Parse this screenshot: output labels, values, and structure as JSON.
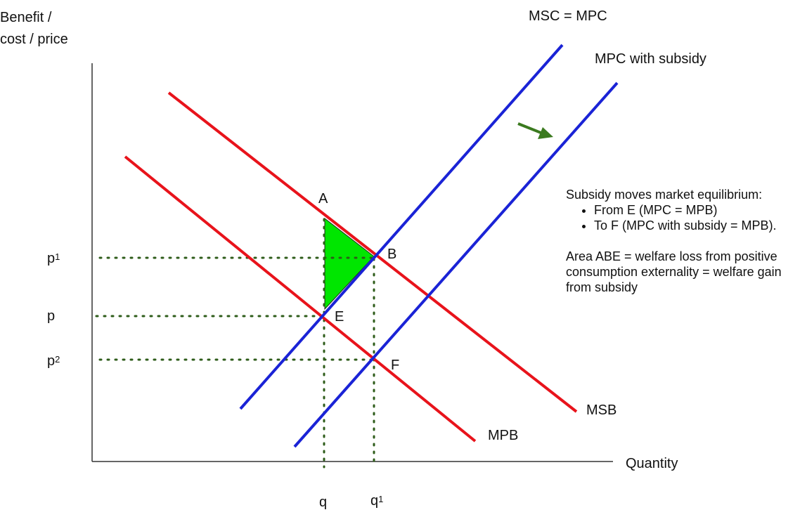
{
  "axes": {
    "y_label_line1": "Benefit /",
    "y_label_line2": "cost / price",
    "x_label": "Quantity"
  },
  "curves": {
    "msc_label": "MSC = MPC",
    "mpc_subsidy_label": "MPC with subsidy",
    "msb_label": "MSB",
    "mpb_label": "MPB"
  },
  "points": {
    "a": "A",
    "b": "B",
    "e": "E",
    "f": "F"
  },
  "price_labels": {
    "p1_base": "p",
    "p1_sub": "1",
    "p": "p",
    "p2_base": "p",
    "p2_sub": "2"
  },
  "quantity_labels": {
    "q": "q",
    "q1_base": "q",
    "q1_sub": "1"
  },
  "notes": {
    "intro": "Subsidy moves market equilibrium:",
    "bullets": [
      "From E (MPC = MPB)",
      "To F (MPC with subsidy = MPB)."
    ],
    "area": "Area ABE = welfare loss from positive consumption externality = welfare gain from subsidy"
  },
  "colors": {
    "benefit_curves": "#e8131b",
    "cost_curves": "#1a23d6",
    "welfare_triangle": "#00e600",
    "arrow": "#3b7a1f",
    "guides": "#2e5c1a"
  }
}
